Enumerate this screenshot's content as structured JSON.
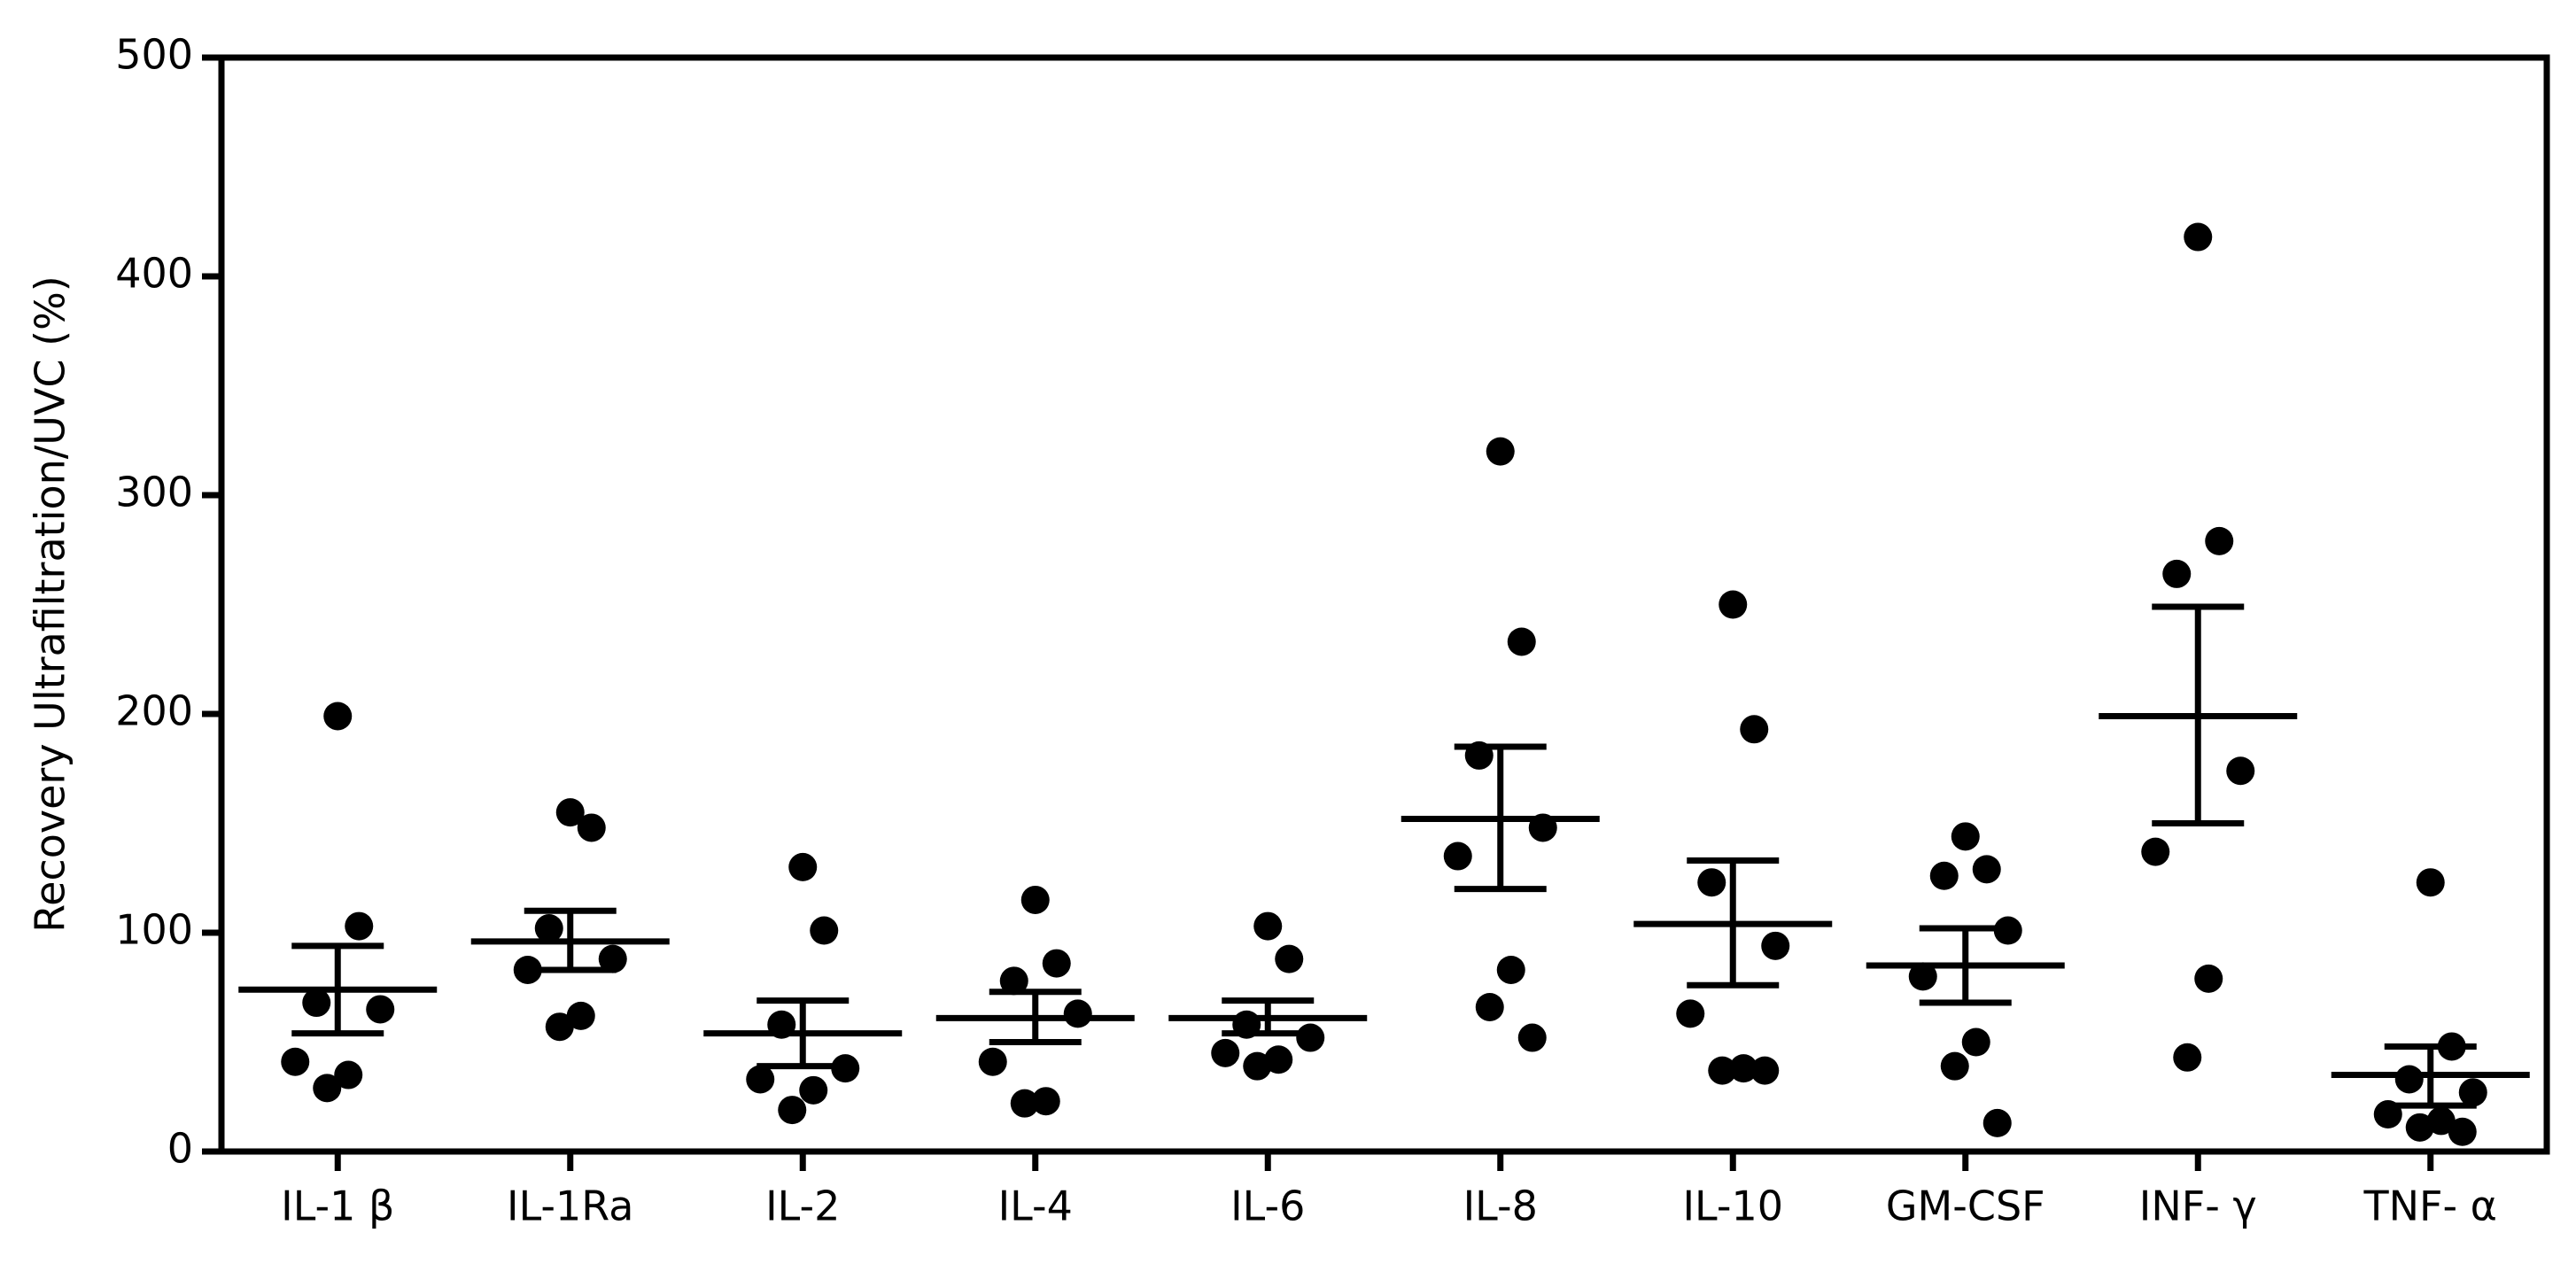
{
  "chart_data": {
    "type": "dotplot",
    "y_label": "Recovery Ultrafiltration/UVC (%)",
    "categories": [
      "IL-1 β",
      "IL-1Ra",
      "IL-2",
      "IL-4",
      "IL-6",
      "IL-8",
      "IL-10",
      "GM-CSF",
      "INF- γ",
      "TNF- α"
    ],
    "values": [
      [
        199,
        103,
        68,
        65,
        41,
        35,
        29
      ],
      [
        155,
        148,
        102,
        88,
        83,
        62,
        57
      ],
      [
        130,
        101,
        58,
        38,
        33,
        28,
        19
      ],
      [
        115,
        86,
        78,
        63,
        41,
        23,
        22
      ],
      [
        103,
        88,
        58,
        52,
        45,
        42,
        39
      ],
      [
        320,
        233,
        181,
        148,
        135,
        83,
        66,
        52
      ],
      [
        250,
        193,
        123,
        94,
        63,
        38,
        37,
        37
      ],
      [
        144,
        129,
        126,
        101,
        80,
        50,
        39,
        13
      ],
      [
        418,
        279,
        264,
        174,
        137,
        79,
        43
      ],
      [
        123,
        48,
        33,
        27,
        17,
        14,
        11,
        9
      ]
    ],
    "mean": [
      74,
      96,
      54,
      61,
      61,
      152,
      104,
      85,
      199,
      35
    ],
    "error_upper": [
      94,
      110,
      69,
      73,
      69,
      185,
      133,
      102,
      249,
      48
    ],
    "error_lower": [
      54,
      83,
      39,
      50,
      54,
      120,
      76,
      68,
      150,
      21
    ],
    "color": "#000000",
    "ylim": [
      0,
      500
    ],
    "yticks": [
      0,
      100,
      200,
      300,
      400,
      500
    ],
    "grid": false
  }
}
